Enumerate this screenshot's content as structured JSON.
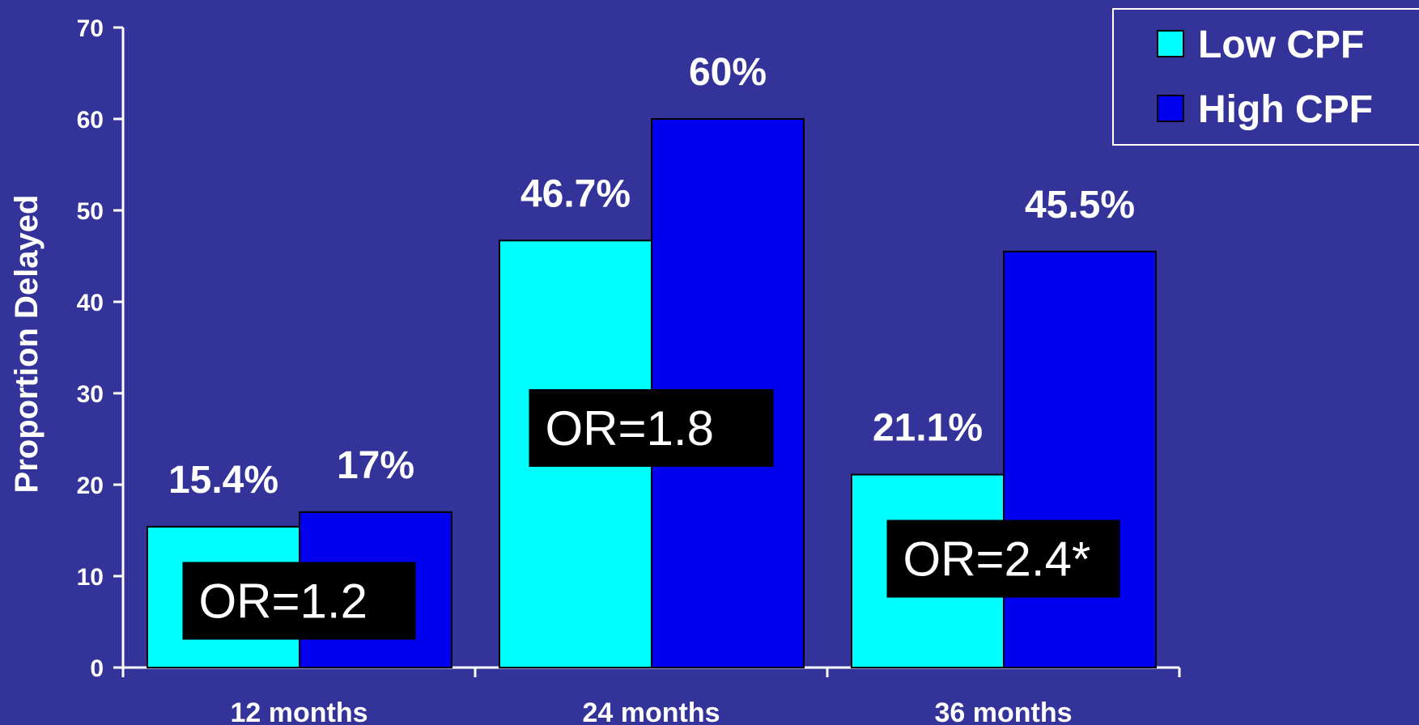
{
  "chart_data": {
    "type": "bar",
    "categories": [
      "12 months",
      "24 months",
      "36 months"
    ],
    "series": [
      {
        "name": "Low CPF",
        "values": [
          15.4,
          46.7,
          21.1
        ],
        "labels": [
          "15.4%",
          "46.7%",
          "21.1%"
        ],
        "color": "#00FFFF"
      },
      {
        "name": "High CPF",
        "values": [
          17,
          60,
          45.5
        ],
        "labels": [
          "17%",
          "60%",
          "45.5%"
        ],
        "color": "#0000EE"
      }
    ],
    "ylabel": "Proportion Delayed",
    "xlabel": "",
    "ylim": [
      0,
      70
    ],
    "yticks": [
      0,
      10,
      20,
      30,
      40,
      50,
      60,
      70
    ],
    "grid": false,
    "legend_position": "top-right",
    "annotations": [
      "OR=1.2",
      "OR=1.8",
      "OR=2.4*"
    ]
  },
  "colors": {
    "background": "#333399",
    "annotation_box": "#000000",
    "bar_outline": "#000000",
    "axis": "#ffffff"
  }
}
